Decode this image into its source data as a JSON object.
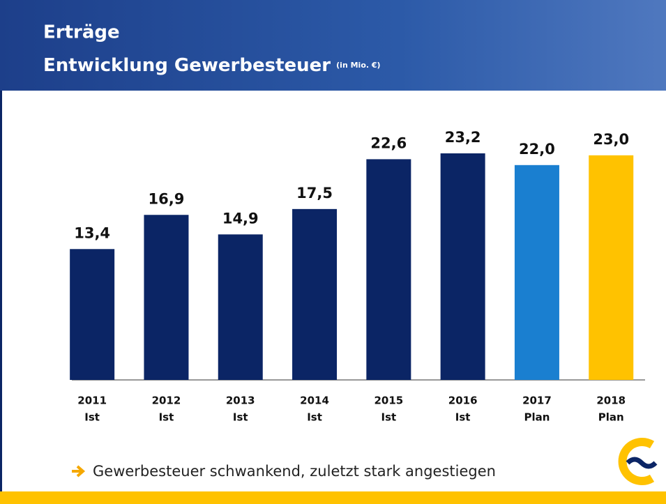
{
  "header": {
    "title": "Erträge",
    "subtitle": "Entwicklung Gewerbesteuer",
    "unit": "(in Mio. €)"
  },
  "chart_data": {
    "type": "bar",
    "categories": [
      "2011",
      "2012",
      "2013",
      "2014",
      "2015",
      "2016",
      "2017",
      "2018"
    ],
    "category_notes": [
      "Ist",
      "Ist",
      "Ist",
      "Ist",
      "Ist",
      "Ist",
      "Plan",
      "Plan"
    ],
    "values": [
      13.4,
      16.9,
      14.9,
      17.5,
      22.6,
      23.2,
      22.0,
      23.0
    ],
    "value_labels": [
      "13,4",
      "16,9",
      "14,9",
      "17,5",
      "22,6",
      "23,2",
      "22,0",
      "23,0"
    ],
    "colors": [
      "#0b2565",
      "#0b2565",
      "#0b2565",
      "#0b2565",
      "#0b2565",
      "#0b2565",
      "#1a7fd0",
      "#ffc200"
    ]
  },
  "footer": {
    "text": "Gewerbesteuer schwankend, zuletzt stark angestiegen"
  }
}
